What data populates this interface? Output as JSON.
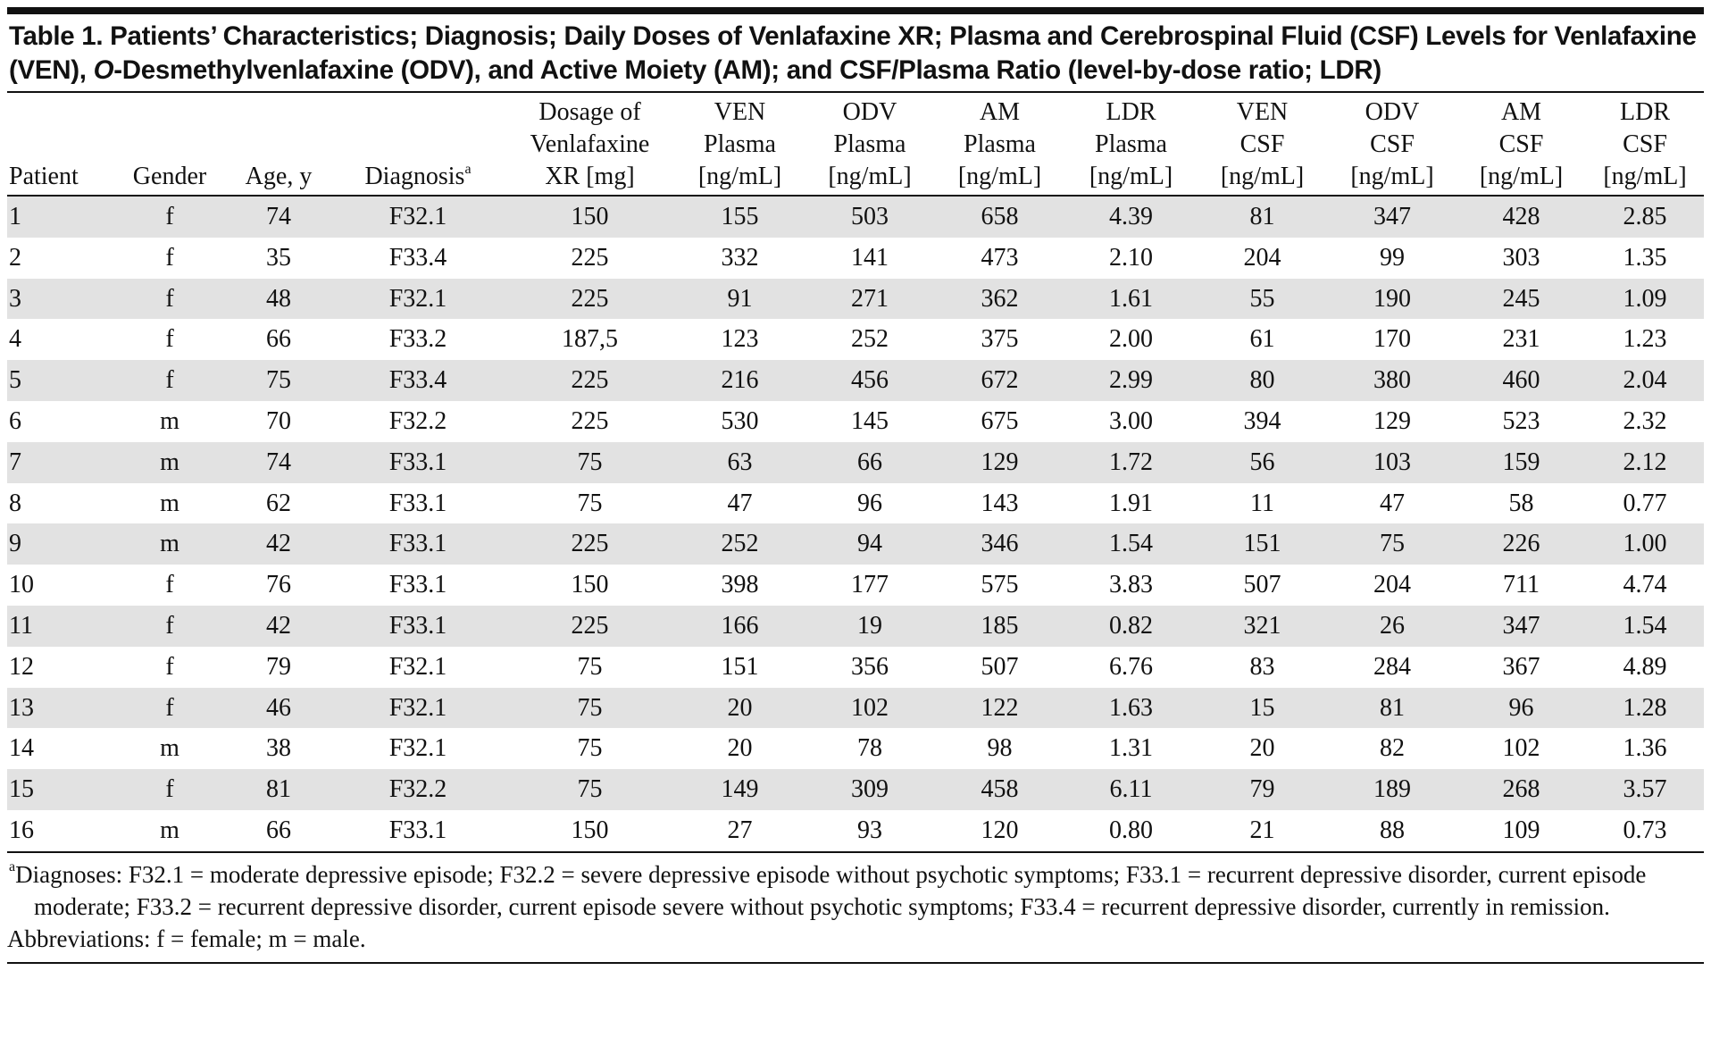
{
  "title": [
    "Table 1. Patients’ Characteristics; Diagnosis; Daily Doses of Venlafaxine XR; Plasma and Cerebrospinal Fluid (CSF) Levels for Venlafaxine (VEN), ",
    "O",
    "-Desmethylvenlafaxine (ODV), and Active Moiety (AM); and CSF/Plasma Ratio (level-by-dose ratio; LDR)"
  ],
  "table": {
    "columns": [
      {
        "lines": [
          "Patient"
        ]
      },
      {
        "lines": [
          "Gender"
        ]
      },
      {
        "lines": [
          "Age, y"
        ]
      },
      {
        "lines": [
          "Diagnosis"
        ],
        "sup": "a"
      },
      {
        "lines": [
          "Dosage of",
          "Venlafaxine",
          "XR [mg]"
        ]
      },
      {
        "lines": [
          "VEN",
          "Plasma",
          "[ng/mL]"
        ]
      },
      {
        "lines": [
          "ODV",
          "Plasma",
          "[ng/mL]"
        ]
      },
      {
        "lines": [
          "AM",
          "Plasma",
          "[ng/mL]"
        ]
      },
      {
        "lines": [
          "LDR",
          "Plasma",
          "[ng/mL]"
        ]
      },
      {
        "lines": [
          "VEN",
          "CSF",
          "[ng/mL]"
        ]
      },
      {
        "lines": [
          "ODV",
          "CSF",
          "[ng/mL]"
        ]
      },
      {
        "lines": [
          "AM",
          "CSF",
          "[ng/mL]"
        ]
      },
      {
        "lines": [
          "LDR",
          "CSF",
          "[ng/mL]"
        ]
      }
    ],
    "rows": [
      [
        "1",
        "f",
        "74",
        "F32.1",
        "150",
        "155",
        "503",
        "658",
        "4.39",
        "81",
        "347",
        "428",
        "2.85"
      ],
      [
        "2",
        "f",
        "35",
        "F33.4",
        "225",
        "332",
        "141",
        "473",
        "2.10",
        "204",
        "99",
        "303",
        "1.35"
      ],
      [
        "3",
        "f",
        "48",
        "F32.1",
        "225",
        "91",
        "271",
        "362",
        "1.61",
        "55",
        "190",
        "245",
        "1.09"
      ],
      [
        "4",
        "f",
        "66",
        "F33.2",
        "187,5",
        "123",
        "252",
        "375",
        "2.00",
        "61",
        "170",
        "231",
        "1.23"
      ],
      [
        "5",
        "f",
        "75",
        "F33.4",
        "225",
        "216",
        "456",
        "672",
        "2.99",
        "80",
        "380",
        "460",
        "2.04"
      ],
      [
        "6",
        "m",
        "70",
        "F32.2",
        "225",
        "530",
        "145",
        "675",
        "3.00",
        "394",
        "129",
        "523",
        "2.32"
      ],
      [
        "7",
        "m",
        "74",
        "F33.1",
        "75",
        "63",
        "66",
        "129",
        "1.72",
        "56",
        "103",
        "159",
        "2.12"
      ],
      [
        "8",
        "m",
        "62",
        "F33.1",
        "75",
        "47",
        "96",
        "143",
        "1.91",
        "11",
        "47",
        "58",
        "0.77"
      ],
      [
        "9",
        "m",
        "42",
        "F33.1",
        "225",
        "252",
        "94",
        "346",
        "1.54",
        "151",
        "75",
        "226",
        "1.00"
      ],
      [
        "10",
        "f",
        "76",
        "F33.1",
        "150",
        "398",
        "177",
        "575",
        "3.83",
        "507",
        "204",
        "711",
        "4.74"
      ],
      [
        "11",
        "f",
        "42",
        "F33.1",
        "225",
        "166",
        "19",
        "185",
        "0.82",
        "321",
        "26",
        "347",
        "1.54"
      ],
      [
        "12",
        "f",
        "79",
        "F32.1",
        "75",
        "151",
        "356",
        "507",
        "6.76",
        "83",
        "284",
        "367",
        "4.89"
      ],
      [
        "13",
        "f",
        "46",
        "F32.1",
        "75",
        "20",
        "102",
        "122",
        "1.63",
        "15",
        "81",
        "96",
        "1.28"
      ],
      [
        "14",
        "m",
        "38",
        "F32.1",
        "75",
        "20",
        "78",
        "98",
        "1.31",
        "20",
        "82",
        "102",
        "1.36"
      ],
      [
        "15",
        "f",
        "81",
        "F32.2",
        "75",
        "149",
        "309",
        "458",
        "6.11",
        "79",
        "189",
        "268",
        "3.57"
      ],
      [
        "16",
        "m",
        "66",
        "F33.1",
        "150",
        "27",
        "93",
        "120",
        "0.80",
        "21",
        "88",
        "109",
        "0.73"
      ]
    ]
  },
  "footnotes": [
    {
      "mark": "a",
      "text": "Diagnoses: F32.1 = moderate depressive episode; F32.2 = severe depressive episode without psychotic symptoms; F33.1 = recurrent depressive disorder, current episode moderate; F33.2 = recurrent depressive disorder, current episode severe without psychotic symptoms; F33.4 = recurrent depressive disorder, currently in remission."
    },
    {
      "text": "Abbreviations: f = female; m = male."
    }
  ]
}
